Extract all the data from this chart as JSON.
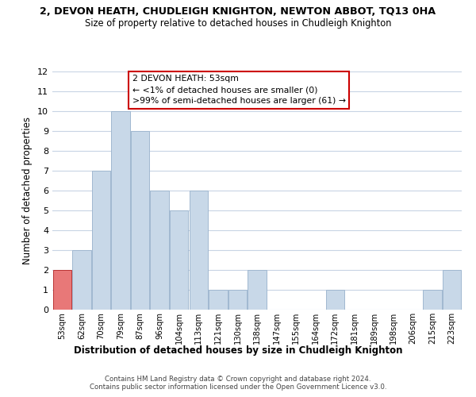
{
  "title": "2, DEVON HEATH, CHUDLEIGH KNIGHTON, NEWTON ABBOT, TQ13 0HA",
  "subtitle": "Size of property relative to detached houses in Chudleigh Knighton",
  "xlabel": "Distribution of detached houses by size in Chudleigh Knighton",
  "ylabel": "Number of detached properties",
  "bin_labels": [
    "53sqm",
    "62sqm",
    "70sqm",
    "79sqm",
    "87sqm",
    "96sqm",
    "104sqm",
    "113sqm",
    "121sqm",
    "130sqm",
    "138sqm",
    "147sqm",
    "155sqm",
    "164sqm",
    "172sqm",
    "181sqm",
    "189sqm",
    "198sqm",
    "206sqm",
    "215sqm",
    "223sqm"
  ],
  "bar_heights": [
    2,
    3,
    7,
    10,
    9,
    6,
    5,
    6,
    1,
    1,
    2,
    0,
    0,
    0,
    1,
    0,
    0,
    0,
    0,
    1,
    2
  ],
  "bar_color": "#c8d8e8",
  "bar_edge_color": "#a0b8d0",
  "highlight_bar_index": 0,
  "highlight_color": "#e87878",
  "highlight_edge_color": "#bb3333",
  "ylim": [
    0,
    12
  ],
  "yticks": [
    0,
    1,
    2,
    3,
    4,
    5,
    6,
    7,
    8,
    9,
    10,
    11,
    12
  ],
  "annotation_title": "2 DEVON HEATH: 53sqm",
  "annotation_line1": "← <1% of detached houses are smaller (0)",
  "annotation_line2": ">99% of semi-detached houses are larger (61) →",
  "annotation_box_color": "#ffffff",
  "annotation_box_edge_color": "#cc0000",
  "footer_line1": "Contains HM Land Registry data © Crown copyright and database right 2024.",
  "footer_line2": "Contains public sector information licensed under the Open Government Licence v3.0.",
  "background_color": "#ffffff",
  "grid_color": "#c8d4e4"
}
